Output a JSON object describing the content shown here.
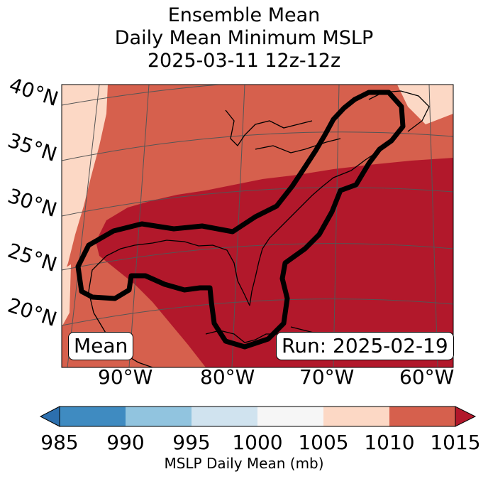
{
  "title_lines": [
    "Ensemble Mean",
    "Daily Mean Minimum MSLP",
    "2025-03-11 12z-12z"
  ],
  "lat_labels": [
    "40°N",
    "35°N",
    "30°N",
    "25°N",
    "20°N"
  ],
  "lon_labels": [
    "90°W",
    "80°W",
    "70°W",
    "60°W"
  ],
  "box_mean": "Mean",
  "box_run": "Run: 2025-02-19",
  "colorbar": {
    "ticks": [
      "985",
      "990",
      "995",
      "1000",
      "1005",
      "1010",
      "1015"
    ],
    "label": "MSLP Daily Mean (mb)",
    "colors": [
      "#3f8bc1",
      "#91c4df",
      "#d0e3ef",
      "#f6f6f6",
      "#fcd8c5",
      "#d6604d",
      "#b2182b"
    ]
  }
}
